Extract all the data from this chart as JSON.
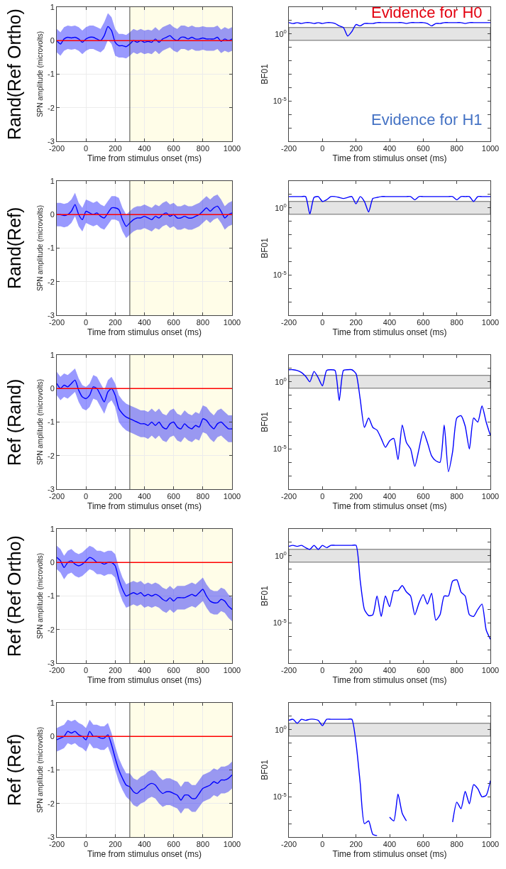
{
  "chart_data": [
    {
      "type": "line",
      "xlabel": "Time from stimulus onset (ms)",
      "ylabel": "SPN amplitude (microvolts)",
      "annotations": [
        "Rand(Ref Ortho)"
      ],
      "xlim": [
        -200,
        1000
      ],
      "xticks": [
        -200,
        0,
        200,
        400,
        600,
        800,
        1000
      ],
      "ylim": [
        -3,
        1
      ],
      "yticks": [
        -3,
        -2,
        -1,
        0,
        1
      ],
      "grid": true,
      "x": [
        -200,
        -175,
        -150,
        -125,
        -100,
        -75,
        -50,
        -25,
        0,
        25,
        50,
        75,
        100,
        125,
        150,
        175,
        200,
        225,
        250,
        275,
        300,
        325,
        350,
        375,
        400,
        425,
        450,
        475,
        500,
        525,
        550,
        575,
        600,
        625,
        650,
        675,
        700,
        725,
        750,
        775,
        800,
        825,
        850,
        875,
        900,
        925,
        950,
        975,
        1000
      ],
      "series": [
        {
          "color": "#0000ff",
          "values": [
            0,
            -0.1,
            0.05,
            0.1,
            0.08,
            0.1,
            0.05,
            -0.05,
            0.05,
            0.1,
            0.1,
            0.05,
            0,
            0.15,
            0.42,
            0.3,
            -0.05,
            -0.15,
            -0.15,
            -0.18,
            -0.1,
            0,
            -0.05,
            0,
            -0.05,
            -0.02,
            -0.05,
            0.05,
            -0.05,
            0.05,
            0.1,
            0.15,
            0.05,
            0,
            0.1,
            0.1,
            0.05,
            0.1,
            0.05,
            0.05,
            0.08,
            0.05,
            0.05,
            0.05,
            0.1,
            -0.02,
            0.05,
            0,
            0.05
          ],
          "lower": [
            -0.35,
            -0.45,
            -0.3,
            -0.25,
            -0.27,
            -0.25,
            -0.3,
            -0.4,
            -0.3,
            -0.25,
            -0.25,
            -0.3,
            -0.35,
            -0.25,
            0.02,
            -0.1,
            -0.45,
            -0.5,
            -0.5,
            -0.53,
            -0.45,
            -0.35,
            -0.4,
            -0.35,
            -0.4,
            -0.37,
            -0.4,
            -0.3,
            -0.4,
            -0.3,
            -0.25,
            -0.2,
            -0.3,
            -0.35,
            -0.25,
            -0.25,
            -0.3,
            -0.25,
            -0.3,
            -0.3,
            -0.27,
            -0.3,
            -0.3,
            -0.3,
            -0.25,
            -0.37,
            -0.3,
            -0.35,
            -0.3
          ],
          "upper": [
            0.35,
            0.25,
            0.4,
            0.45,
            0.43,
            0.45,
            0.4,
            0.3,
            0.4,
            0.45,
            0.45,
            0.4,
            0.35,
            0.55,
            0.82,
            0.7,
            0.35,
            0.2,
            0.2,
            0.17,
            0.25,
            0.35,
            0.3,
            0.35,
            0.3,
            0.33,
            0.3,
            0.4,
            0.3,
            0.4,
            0.45,
            0.5,
            0.4,
            0.35,
            0.45,
            0.45,
            0.4,
            0.45,
            0.4,
            0.4,
            0.43,
            0.4,
            0.4,
            0.4,
            0.45,
            0.33,
            0.4,
            0.35,
            0.4
          ]
        }
      ],
      "ref_lines": [
        {
          "axis": "y",
          "value": 0,
          "color": "#ff0000"
        },
        {
          "axis": "x",
          "value": 300,
          "color": "#444444"
        }
      ],
      "bands": [
        {
          "axis": "x",
          "from": 300,
          "to": 1000,
          "color": "#fffde8"
        }
      ]
    },
    {
      "type": "line",
      "xlabel": "Time from stimulus onset (ms)",
      "ylabel": "BF01",
      "annotations": [
        "Evidence for H0",
        "Evidence for H1"
      ],
      "log": "y",
      "xlim": [
        -200,
        1000
      ],
      "xticks": [
        -200,
        0,
        200,
        400,
        600,
        800,
        1000
      ],
      "ylim": [
        1e-08,
        100
      ],
      "yticks": [
        {
          "value": 1e-08,
          "label": null
        },
        {
          "value": 1e-07,
          "label": null
        },
        {
          "value": 1e-06,
          "label": null
        },
        {
          "value": 1e-05,
          "label": "10$^{-5}$"
        },
        {
          "value": 0.0001,
          "label": null
        },
        {
          "value": 0.001,
          "label": null
        },
        {
          "value": 0.01,
          "label": null
        },
        {
          "value": 0.1,
          "label": null
        },
        {
          "value": 1,
          "label": "10$^{0}$"
        },
        {
          "value": 10,
          "label": null
        },
        {
          "value": 100,
          "label": null
        }
      ],
      "x": [
        -200,
        -175,
        -150,
        -125,
        -100,
        -75,
        -50,
        -25,
        0,
        25,
        50,
        75,
        100,
        125,
        150,
        175,
        200,
        225,
        250,
        275,
        300,
        325,
        350,
        375,
        400,
        425,
        450,
        475,
        500,
        525,
        550,
        575,
        600,
        625,
        650,
        675,
        700,
        725,
        750,
        775,
        800,
        825,
        850,
        875,
        900,
        925,
        950,
        975,
        1000
      ],
      "series": [
        {
          "color": "#0000ff",
          "values": [
            7,
            6,
            7,
            6,
            7,
            7,
            6,
            7,
            6,
            7,
            7,
            6,
            4,
            3,
            0.7,
            1.5,
            5,
            4,
            6,
            6,
            6,
            7,
            7,
            7,
            7,
            7,
            7,
            7,
            6,
            7,
            7,
            7,
            7,
            6,
            4,
            6,
            6,
            7,
            7,
            7,
            7,
            7,
            6,
            7,
            7,
            7,
            7,
            7,
            7
          ]
        }
      ],
      "bands": [
        {
          "axis": "y",
          "from": 0.333,
          "to": 3,
          "color": "#e4e4e4"
        }
      ]
    },
    {
      "type": "line",
      "xlabel": "Time from stimulus onset (ms)",
      "ylabel": "SPN amplitude (microvolts)",
      "annotations": [
        "Rand(Ref)"
      ],
      "xlim": [
        -200,
        1000
      ],
      "xticks": [
        -200,
        0,
        200,
        400,
        600,
        800,
        1000
      ],
      "ylim": [
        -3,
        1
      ],
      "yticks": [
        -3,
        -2,
        -1,
        0,
        1
      ],
      "grid": true,
      "x": [
        -200,
        -175,
        -150,
        -125,
        -100,
        -75,
        -50,
        -25,
        0,
        25,
        50,
        75,
        100,
        125,
        150,
        175,
        200,
        225,
        250,
        275,
        300,
        325,
        350,
        375,
        400,
        425,
        450,
        475,
        500,
        525,
        550,
        575,
        600,
        625,
        650,
        675,
        700,
        725,
        750,
        775,
        800,
        825,
        850,
        875,
        900,
        925,
        950,
        975,
        1000
      ],
      "series": [
        {
          "color": "#0000ff",
          "values": [
            0,
            0,
            -0.03,
            0,
            0.1,
            0.3,
            0,
            -0.15,
            0.1,
            0.05,
            0,
            0.05,
            -0.05,
            -0.1,
            0.05,
            0.2,
            0.2,
            0.15,
            -0.15,
            -0.35,
            -0.25,
            -0.15,
            -0.1,
            -0.1,
            -0.05,
            -0.1,
            -0.15,
            -0.05,
            -0.1,
            0,
            0.05,
            -0.05,
            0,
            -0.1,
            -0.1,
            -0.05,
            -0.1,
            -0.1,
            -0.05,
            0,
            0.1,
            0.2,
            0.1,
            0.2,
            0.25,
            0.1,
            -0.1,
            0,
            0.05
          ],
          "lower": [
            -0.35,
            -0.35,
            -0.38,
            -0.35,
            -0.25,
            -0.05,
            -0.35,
            -0.5,
            -0.25,
            -0.3,
            -0.35,
            -0.3,
            -0.4,
            -0.45,
            -0.3,
            -0.15,
            -0.15,
            -0.2,
            -0.5,
            -0.7,
            -0.6,
            -0.5,
            -0.45,
            -0.45,
            -0.4,
            -0.45,
            -0.5,
            -0.4,
            -0.45,
            -0.35,
            -0.3,
            -0.4,
            -0.35,
            -0.45,
            -0.45,
            -0.4,
            -0.45,
            -0.45,
            -0.4,
            -0.35,
            -0.25,
            -0.15,
            -0.25,
            -0.15,
            -0.1,
            -0.25,
            -0.45,
            -0.35,
            -0.3
          ],
          "upper": [
            0.35,
            0.35,
            0.32,
            0.35,
            0.45,
            0.65,
            0.35,
            0.2,
            0.45,
            0.4,
            0.35,
            0.4,
            0.3,
            0.25,
            0.4,
            0.55,
            0.55,
            0.5,
            0.2,
            0,
            0.1,
            0.2,
            0.25,
            0.25,
            0.3,
            0.25,
            0.2,
            0.3,
            0.25,
            0.35,
            0.4,
            0.3,
            0.35,
            0.25,
            0.25,
            0.3,
            0.25,
            0.25,
            0.3,
            0.35,
            0.45,
            0.55,
            0.45,
            0.55,
            0.6,
            0.45,
            0.25,
            0.35,
            0.4
          ]
        }
      ],
      "ref_lines": [
        {
          "axis": "y",
          "value": 0,
          "color": "#ff0000"
        },
        {
          "axis": "x",
          "value": 300,
          "color": "#444444"
        }
      ],
      "bands": [
        {
          "axis": "x",
          "from": 300,
          "to": 1000,
          "color": "#fffde8"
        }
      ]
    },
    {
      "type": "line",
      "xlabel": "Time from stimulus onset (ms)",
      "ylabel": "BF01",
      "log": "y",
      "xlim": [
        -200,
        1000
      ],
      "xticks": [
        -200,
        0,
        200,
        400,
        600,
        800,
        1000
      ],
      "ylim": [
        1e-08,
        100
      ],
      "yticks": [
        {
          "value": 1e-08,
          "label": null
        },
        {
          "value": 1e-07,
          "label": null
        },
        {
          "value": 1e-06,
          "label": null
        },
        {
          "value": 1e-05,
          "label": "10$^{-5}$"
        },
        {
          "value": 0.0001,
          "label": null
        },
        {
          "value": 0.001,
          "label": null
        },
        {
          "value": 0.01,
          "label": null
        },
        {
          "value": 0.1,
          "label": null
        },
        {
          "value": 1,
          "label": "10$^{0}$"
        },
        {
          "value": 10,
          "label": null
        },
        {
          "value": 100,
          "label": null
        }
      ],
      "x": [
        -200,
        -175,
        -150,
        -125,
        -100,
        -75,
        -50,
        -25,
        0,
        25,
        50,
        75,
        100,
        125,
        150,
        175,
        200,
        225,
        250,
        275,
        300,
        325,
        350,
        375,
        400,
        425,
        450,
        475,
        500,
        525,
        550,
        575,
        600,
        625,
        650,
        675,
        700,
        725,
        750,
        775,
        800,
        825,
        850,
        875,
        900,
        925,
        950,
        975,
        1000
      ],
      "series": [
        {
          "color": "#0000ff",
          "values": [
            7,
            7,
            7,
            7,
            7,
            0.35,
            6,
            7,
            3,
            4,
            7,
            7,
            6,
            5,
            6,
            7,
            2,
            7,
            3,
            0.5,
            5,
            6,
            7,
            7,
            7,
            7,
            7,
            7,
            7,
            7,
            4,
            7,
            7,
            7,
            7,
            7,
            7,
            7,
            7,
            7,
            4,
            7,
            7,
            7,
            3,
            7,
            7,
            7,
            7
          ]
        }
      ],
      "bands": [
        {
          "axis": "y",
          "from": 0.333,
          "to": 3,
          "color": "#e4e4e4"
        }
      ]
    },
    {
      "type": "line",
      "xlabel": "Time from stimulus onset (ms)",
      "ylabel": "SPN amplitude (microvolts)",
      "annotations": [
        "Ref (Rand)"
      ],
      "xlim": [
        -200,
        1000
      ],
      "xticks": [
        -200,
        0,
        200,
        400,
        600,
        800,
        1000
      ],
      "ylim": [
        -3,
        1
      ],
      "yticks": [
        -3,
        -2,
        -1,
        0,
        1
      ],
      "grid": true,
      "x": [
        -200,
        -175,
        -150,
        -125,
        -100,
        -75,
        -50,
        -25,
        0,
        25,
        50,
        75,
        100,
        125,
        150,
        175,
        200,
        225,
        250,
        275,
        300,
        325,
        350,
        375,
        400,
        425,
        450,
        475,
        500,
        525,
        550,
        575,
        600,
        625,
        650,
        675,
        700,
        725,
        750,
        775,
        800,
        825,
        850,
        875,
        900,
        925,
        950,
        975,
        1000
      ],
      "series": [
        {
          "color": "#0000ff",
          "values": [
            0.15,
            0,
            0.1,
            0.05,
            0.15,
            0.25,
            -0.05,
            -0.25,
            -0.3,
            -0.2,
            0.05,
            0,
            -0.2,
            -0.4,
            -0.1,
            0,
            -0.2,
            -0.6,
            -0.75,
            -0.85,
            -0.9,
            -0.95,
            -1,
            -1.05,
            -1.05,
            -1.1,
            -1,
            -1.1,
            -1,
            -1.15,
            -1.2,
            -1.05,
            -1,
            -1.15,
            -1.2,
            -1.05,
            -1.15,
            -1.2,
            -1.1,
            -1.15,
            -0.9,
            -0.95,
            -1.1,
            -1.2,
            -1.05,
            -1,
            -1.1,
            -1.2,
            -1.2
          ],
          "lower": [
            -0.2,
            -0.35,
            -0.25,
            -0.3,
            -0.2,
            -0.1,
            -0.4,
            -0.6,
            -0.65,
            -0.55,
            -0.3,
            -0.35,
            -0.55,
            -0.75,
            -0.45,
            -0.35,
            -0.55,
            -1,
            -1.15,
            -1.25,
            -1.3,
            -1.35,
            -1.4,
            -1.45,
            -1.45,
            -1.5,
            -1.4,
            -1.5,
            -1.4,
            -1.55,
            -1.6,
            -1.45,
            -1.4,
            -1.55,
            -1.6,
            -1.45,
            -1.55,
            -1.6,
            -1.5,
            -1.55,
            -1.3,
            -1.35,
            -1.5,
            -1.6,
            -1.45,
            -1.4,
            -1.5,
            -1.6,
            -1.6
          ],
          "upper": [
            0.5,
            0.35,
            0.45,
            0.4,
            0.5,
            0.6,
            0.3,
            0.1,
            0.05,
            0.15,
            0.4,
            0.35,
            0.15,
            -0.05,
            0.25,
            0.35,
            0.15,
            -0.2,
            -0.35,
            -0.45,
            -0.5,
            -0.55,
            -0.6,
            -0.65,
            -0.65,
            -0.7,
            -0.6,
            -0.7,
            -0.6,
            -0.75,
            -0.8,
            -0.65,
            -0.6,
            -0.75,
            -0.8,
            -0.65,
            -0.75,
            -0.8,
            -0.7,
            -0.75,
            -0.5,
            -0.55,
            -0.7,
            -0.8,
            -0.65,
            -0.6,
            -0.7,
            -0.8,
            -0.8
          ]
        }
      ],
      "ref_lines": [
        {
          "axis": "y",
          "value": 0,
          "color": "#ff0000"
        },
        {
          "axis": "x",
          "value": 300,
          "color": "#444444"
        }
      ],
      "bands": [
        {
          "axis": "x",
          "from": 300,
          "to": 1000,
          "color": "#fffde8"
        }
      ]
    },
    {
      "type": "line",
      "xlabel": "Time from stimulus onset (ms)",
      "ylabel": "BF01",
      "log": "y",
      "xlim": [
        -200,
        1000
      ],
      "xticks": [
        -200,
        0,
        200,
        400,
        600,
        800,
        1000
      ],
      "ylim": [
        1e-08,
        100
      ],
      "yticks": [
        {
          "value": 1e-08,
          "label": null
        },
        {
          "value": 1e-07,
          "label": null
        },
        {
          "value": 1e-06,
          "label": null
        },
        {
          "value": 1e-05,
          "label": "10$^{-5}$"
        },
        {
          "value": 0.0001,
          "label": null
        },
        {
          "value": 0.001,
          "label": null
        },
        {
          "value": 0.01,
          "label": null
        },
        {
          "value": 0.1,
          "label": null
        },
        {
          "value": 1,
          "label": "10$^{0}$"
        },
        {
          "value": 10,
          "label": null
        },
        {
          "value": 100,
          "label": null
        }
      ],
      "x": [
        -200,
        -175,
        -150,
        -125,
        -100,
        -75,
        -50,
        -25,
        0,
        25,
        50,
        75,
        100,
        125,
        150,
        175,
        200,
        225,
        250,
        275,
        300,
        325,
        350,
        375,
        400,
        425,
        450,
        475,
        500,
        525,
        550,
        575,
        600,
        625,
        650,
        675,
        700,
        725,
        750,
        775,
        800,
        825,
        850,
        875,
        900,
        925,
        950,
        975,
        1000
      ],
      "series": [
        {
          "color": "#0000ff",
          "values": [
            8,
            8,
            7,
            5,
            2.6,
            1,
            6,
            2,
            0.5,
            7,
            8,
            7,
            0.04,
            7,
            8,
            8,
            4,
            0.05,
            0.0004,
            0.002,
            0.0004,
            0.00025,
            6e-05,
            1.3e-05,
            4e-05,
            6e-05,
            1.6e-06,
            0.0006,
            3e-05,
            1e-05,
            5e-07,
            1e-05,
            0.0002,
            3e-05,
            3e-06,
            1.3e-06,
            1e-06,
            0.0006,
            2e-07,
            6e-06,
            0.002,
            0.003,
            0.0005,
            1e-05,
            0.002,
            0.001,
            0.016,
            0.001,
            0.0001
          ]
        }
      ],
      "bands": [
        {
          "axis": "y",
          "from": 0.333,
          "to": 3,
          "color": "#e4e4e4"
        }
      ]
    },
    {
      "type": "line",
      "xlabel": "Time from stimulus onset (ms)",
      "ylabel": "SPN amplitude (microvolts)",
      "annotations": [
        "Ref (Ref Ortho)"
      ],
      "xlim": [
        -200,
        1000
      ],
      "xticks": [
        -200,
        0,
        200,
        400,
        600,
        800,
        1000
      ],
      "ylim": [
        -3,
        1
      ],
      "yticks": [
        -3,
        -2,
        -1,
        0,
        1
      ],
      "grid": true,
      "x": [
        -200,
        -175,
        -150,
        -125,
        -100,
        -75,
        -50,
        -25,
        0,
        25,
        50,
        75,
        100,
        125,
        150,
        175,
        200,
        225,
        250,
        275,
        300,
        325,
        350,
        375,
        400,
        425,
        450,
        475,
        500,
        525,
        550,
        575,
        600,
        625,
        650,
        675,
        700,
        725,
        750,
        775,
        800,
        825,
        850,
        875,
        900,
        925,
        950,
        975,
        1000
      ],
      "series": [
        {
          "color": "#0000ff",
          "values": [
            0.15,
            0.05,
            -0.15,
            0,
            0.05,
            -0.05,
            -0.1,
            -0.05,
            0.05,
            0.15,
            0.1,
            0,
            0,
            -0.05,
            0,
            0,
            -0.1,
            -0.5,
            -0.8,
            -1,
            -0.95,
            -0.9,
            -0.95,
            -0.9,
            -1,
            -0.95,
            -1,
            -0.95,
            -1,
            -1.1,
            -1.15,
            -1.05,
            -1.15,
            -1.05,
            -1.05,
            -1.05,
            -1,
            -0.95,
            -1,
            -0.9,
            -0.8,
            -1,
            -1.15,
            -1.2,
            -1.2,
            -1.1,
            -1.15,
            -1.3,
            -1.4
          ],
          "lower": [
            -0.2,
            -0.3,
            -0.5,
            -0.35,
            -0.3,
            -0.4,
            -0.45,
            -0.4,
            -0.3,
            -0.2,
            -0.25,
            -0.35,
            -0.35,
            -0.4,
            -0.35,
            -0.35,
            -0.45,
            -0.85,
            -1.15,
            -1.35,
            -1.3,
            -1.25,
            -1.3,
            -1.25,
            -1.35,
            -1.3,
            -1.35,
            -1.3,
            -1.35,
            -1.45,
            -1.5,
            -1.4,
            -1.5,
            -1.4,
            -1.4,
            -1.4,
            -1.35,
            -1.3,
            -1.35,
            -1.25,
            -1.15,
            -1.35,
            -1.5,
            -1.55,
            -1.55,
            -1.45,
            -1.5,
            -1.65,
            -1.75
          ],
          "upper": [
            0.5,
            0.4,
            0.2,
            0.35,
            0.4,
            0.3,
            0.25,
            0.3,
            0.4,
            0.5,
            0.45,
            0.35,
            0.35,
            0.3,
            0.35,
            0.35,
            0.25,
            -0.15,
            -0.45,
            -0.65,
            -0.6,
            -0.55,
            -0.6,
            -0.55,
            -0.65,
            -0.6,
            -0.65,
            -0.6,
            -0.65,
            -0.75,
            -0.8,
            -0.7,
            -0.8,
            -0.7,
            -0.7,
            -0.7,
            -0.65,
            -0.6,
            -0.65,
            -0.55,
            -0.45,
            -0.65,
            -0.8,
            -0.85,
            -0.85,
            -0.75,
            -0.8,
            -0.95,
            -1.05
          ]
        }
      ],
      "ref_lines": [
        {
          "axis": "y",
          "value": 0,
          "color": "#ff0000"
        },
        {
          "axis": "x",
          "value": 300,
          "color": "#444444"
        }
      ],
      "bands": [
        {
          "axis": "x",
          "from": 300,
          "to": 1000,
          "color": "#fffde8"
        }
      ]
    },
    {
      "type": "line",
      "xlabel": "Time from stimulus onset (ms)",
      "ylabel": "BF01",
      "log": "y",
      "xlim": [
        -200,
        1000
      ],
      "xticks": [
        -200,
        0,
        200,
        400,
        600,
        800,
        1000
      ],
      "ylim": [
        1e-08,
        100
      ],
      "yticks": [
        {
          "value": 1e-08,
          "label": null
        },
        {
          "value": 1e-07,
          "label": null
        },
        {
          "value": 1e-06,
          "label": null
        },
        {
          "value": 1e-05,
          "label": "10$^{-5}$"
        },
        {
          "value": 0.0001,
          "label": null
        },
        {
          "value": 0.001,
          "label": null
        },
        {
          "value": 0.01,
          "label": null
        },
        {
          "value": 0.1,
          "label": null
        },
        {
          "value": 1,
          "label": "10$^{0}$"
        },
        {
          "value": 10,
          "label": null
        },
        {
          "value": 100,
          "label": null
        }
      ],
      "x": [
        -200,
        -175,
        -150,
        -125,
        -100,
        -75,
        -50,
        -25,
        0,
        25,
        50,
        75,
        100,
        125,
        150,
        175,
        200,
        225,
        250,
        275,
        300,
        325,
        350,
        375,
        400,
        425,
        450,
        475,
        500,
        525,
        550,
        575,
        600,
        625,
        650,
        675,
        700,
        725,
        750,
        775,
        800,
        825,
        850,
        875,
        900,
        925,
        950,
        975,
        1000
      ],
      "series": [
        {
          "color": "#0000ff",
          "values": [
            5,
            6,
            5,
            6,
            4,
            3,
            6,
            3,
            6,
            4,
            6,
            6,
            6,
            6,
            6,
            6,
            6,
            0.014,
            0.0001,
            3.5e-05,
            4e-05,
            0.001,
            3e-05,
            0.001,
            0.00016,
            0.0025,
            0.0025,
            0.006,
            0.002,
            0.001,
            4e-05,
            0.0003,
            0.0013,
            0.00025,
            0.0016,
            1.6e-05,
            4e-05,
            0.001,
            0.001,
            0.013,
            0.016,
            0.002,
            0.001,
            4e-05,
            3e-05,
            0.0001,
            0.00025,
            3e-06,
            6e-07
          ]
        }
      ],
      "bands": [
        {
          "axis": "y",
          "from": 0.333,
          "to": 3,
          "color": "#e4e4e4"
        }
      ]
    },
    {
      "type": "line",
      "xlabel": "Time from stimulus onset (ms)",
      "ylabel": "SPN amplitude (microvolts)",
      "annotations": [
        "Ref (Ref)"
      ],
      "xlim": [
        -200,
        1000
      ],
      "xticks": [
        -200,
        0,
        200,
        400,
        600,
        800,
        1000
      ],
      "ylim": [
        -3,
        1
      ],
      "yticks": [
        -3,
        -2,
        -1,
        0,
        1
      ],
      "grid": true,
      "x": [
        -200,
        -175,
        -150,
        -125,
        -100,
        -75,
        -50,
        -25,
        0,
        25,
        50,
        75,
        100,
        125,
        150,
        175,
        200,
        225,
        250,
        275,
        300,
        325,
        350,
        375,
        400,
        425,
        450,
        475,
        500,
        525,
        550,
        575,
        600,
        625,
        650,
        675,
        700,
        725,
        750,
        775,
        800,
        825,
        850,
        875,
        900,
        925,
        950,
        975,
        1000
      ],
      "series": [
        {
          "color": "#0000ff",
          "values": [
            -0.1,
            -0.05,
            0,
            0.15,
            0.1,
            0.15,
            0.05,
            0,
            -0.1,
            0.15,
            0,
            0,
            -0.05,
            -0.05,
            0.05,
            -0.25,
            -0.65,
            -1,
            -1.25,
            -1.45,
            -1.5,
            -1.65,
            -1.7,
            -1.6,
            -1.55,
            -1.45,
            -1.4,
            -1.45,
            -1.6,
            -1.7,
            -1.65,
            -1.65,
            -1.7,
            -1.75,
            -1.9,
            -1.75,
            -1.75,
            -1.85,
            -1.85,
            -1.7,
            -1.55,
            -1.5,
            -1.45,
            -1.35,
            -1.4,
            -1.3,
            -1.3,
            -1.25,
            -1.15
          ],
          "lower": [
            -0.45,
            -0.4,
            -0.35,
            -0.2,
            -0.25,
            -0.2,
            -0.3,
            -0.35,
            -0.45,
            -0.2,
            -0.35,
            -0.35,
            -0.4,
            -0.4,
            -0.3,
            -0.6,
            -1,
            -1.35,
            -1.6,
            -1.8,
            -1.9,
            -2.05,
            -2.1,
            -2,
            -1.95,
            -1.85,
            -1.8,
            -1.85,
            -2,
            -2.1,
            -2.05,
            -2.05,
            -2.1,
            -2.15,
            -2.3,
            -2.15,
            -2.15,
            -2.25,
            -2.25,
            -2.1,
            -1.95,
            -1.9,
            -1.85,
            -1.75,
            -1.8,
            -1.7,
            -1.7,
            -1.65,
            -1.55
          ],
          "upper": [
            0.25,
            0.3,
            0.35,
            0.5,
            0.45,
            0.5,
            0.4,
            0.35,
            0.25,
            0.5,
            0.35,
            0.35,
            0.3,
            0.3,
            0.4,
            0.1,
            -0.3,
            -0.65,
            -0.9,
            -1.1,
            -1.1,
            -1.25,
            -1.3,
            -1.2,
            -1.15,
            -1.05,
            -1,
            -1.05,
            -1.2,
            -1.3,
            -1.25,
            -1.25,
            -1.3,
            -1.35,
            -1.5,
            -1.35,
            -1.35,
            -1.45,
            -1.45,
            -1.3,
            -1.15,
            -1.1,
            -1.05,
            -0.95,
            -1,
            -0.9,
            -0.9,
            -0.85,
            -0.75
          ]
        }
      ],
      "ref_lines": [
        {
          "axis": "y",
          "value": 0,
          "color": "#ff0000"
        },
        {
          "axis": "x",
          "value": 300,
          "color": "#444444"
        }
      ],
      "bands": [
        {
          "axis": "x",
          "from": 300,
          "to": 1000,
          "color": "#fffde8"
        }
      ]
    },
    {
      "type": "line",
      "xlabel": "Time from stimulus onset (ms)",
      "ylabel": "BF01",
      "log": "y",
      "xlim": [
        -200,
        1000
      ],
      "xticks": [
        -200,
        0,
        200,
        400,
        600,
        800,
        1000
      ],
      "ylim": [
        1e-08,
        100
      ],
      "yticks": [
        {
          "value": 1e-08,
          "label": null
        },
        {
          "value": 1e-07,
          "label": null
        },
        {
          "value": 1e-06,
          "label": null
        },
        {
          "value": 1e-05,
          "label": "10$^{-5}$"
        },
        {
          "value": 0.0001,
          "label": null
        },
        {
          "value": 0.001,
          "label": null
        },
        {
          "value": 0.01,
          "label": null
        },
        {
          "value": 0.1,
          "label": null
        },
        {
          "value": 1,
          "label": "10$^{0}$"
        },
        {
          "value": 10,
          "label": null
        },
        {
          "value": 100,
          "label": null
        }
      ],
      "x": [
        -200,
        -175,
        -150,
        -125,
        -100,
        -75,
        -50,
        -25,
        0,
        25,
        50,
        75,
        100,
        125,
        150,
        175,
        200,
        225,
        250,
        275,
        300,
        325,
        350,
        375,
        400,
        425,
        450,
        475,
        500,
        525,
        550,
        575,
        600,
        625,
        650,
        675,
        700,
        725,
        750,
        775,
        800,
        825,
        850,
        875,
        900,
        925,
        950,
        975,
        1000
      ],
      "series": [
        {
          "color": "#0000ff",
          "values": [
            5,
            6,
            3,
            6,
            5,
            6,
            6,
            5,
            2,
            6,
            6,
            6,
            6,
            6,
            6,
            6,
            0.1,
            0.0001,
            1e-07,
            1.6e-07,
            1.6e-08,
            1.3e-08,
            null,
            null,
            3e-07,
            1.6e-07,
            1.6e-05,
            6e-07,
            1.6e-07,
            null,
            null,
            null,
            null,
            null,
            null,
            null,
            null,
            null,
            null,
            1.3e-07,
            4e-06,
            1.3e-06,
            2.5e-05,
            3e-06,
            8e-05,
            4e-05,
            1e-05,
            1.3e-05,
            0.00016
          ]
        }
      ],
      "bands": [
        {
          "axis": "y",
          "from": 0.333,
          "to": 3,
          "color": "#e4e4e4"
        }
      ]
    }
  ]
}
